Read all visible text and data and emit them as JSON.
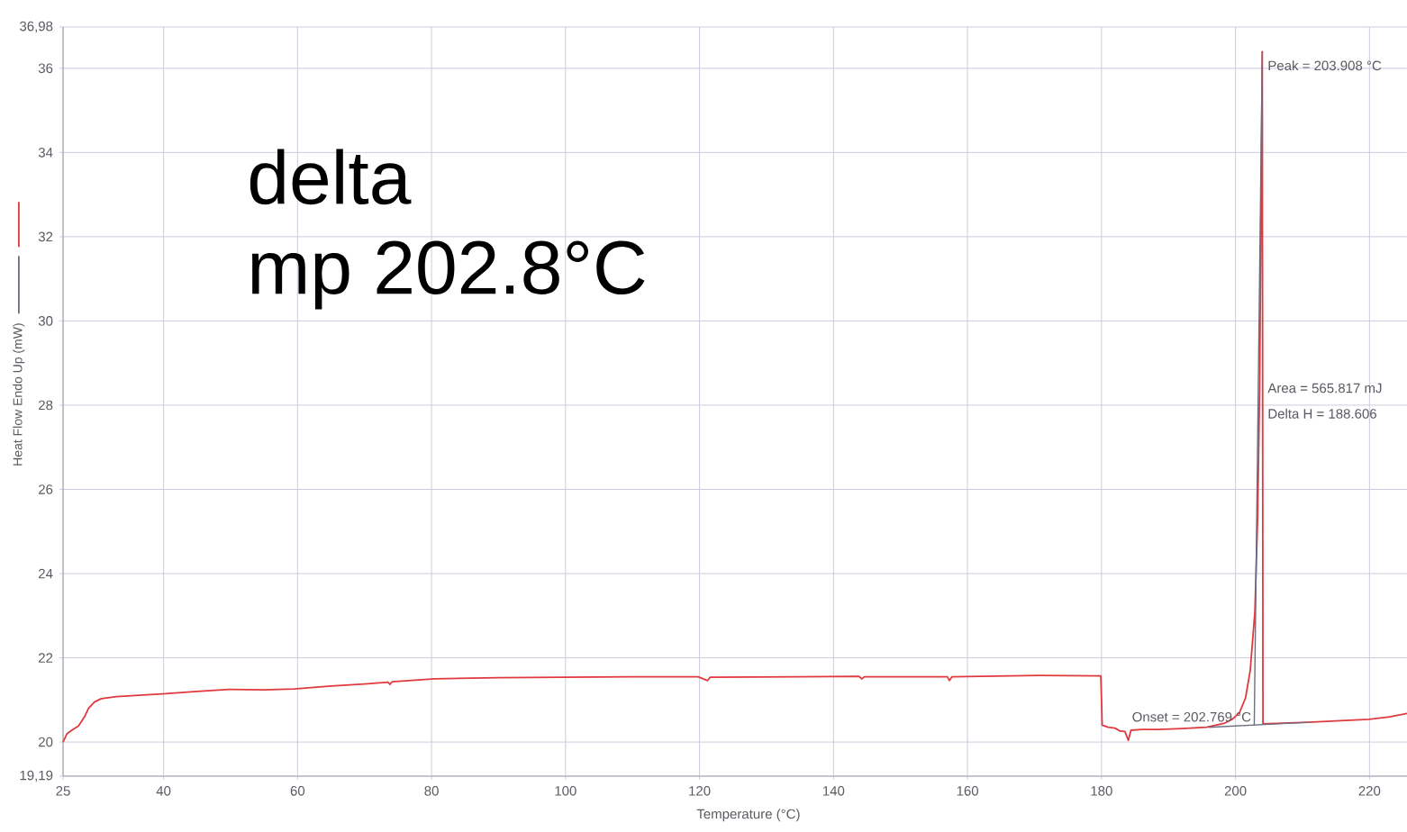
{
  "chart_data": {
    "type": "line",
    "xlabel": "Temperature (°C)",
    "ylabel": "Heat Flow Endo Up (mW)",
    "xlim": [
      25,
      225.6
    ],
    "ylim": [
      19.19,
      36.98
    ],
    "xticks": [
      25,
      40,
      60,
      80,
      100,
      120,
      140,
      160,
      180,
      200,
      220
    ],
    "yticks": [
      {
        "value": 19.19,
        "label": "19,19"
      },
      20,
      22,
      24,
      26,
      28,
      30,
      32,
      34,
      36,
      {
        "value": 36.98,
        "label": "36,98"
      }
    ],
    "grid": true,
    "series": [
      {
        "color": "#e0393e",
        "x": [
          25.0,
          25.6,
          26.4,
          27.3,
          28.2,
          28.8,
          29.7,
          30.7,
          33.0,
          40.3,
          45.0,
          49.8,
          55.0,
          59.5,
          65.0,
          70.0,
          73.5,
          73.8,
          74.1,
          80.5,
          90.0,
          99.7,
          110.0,
          119.8,
          121.2,
          121.6,
          135.0,
          143.8,
          144.2,
          144.6,
          157.0,
          157.3,
          157.7,
          170.6,
          179.9,
          180.1,
          181.0,
          182.0,
          182.8,
          183.5,
          184.0,
          184.4,
          186.0,
          188.5,
          192.0,
          195.7,
          198.4,
          199.6,
          200.6,
          201.5,
          202.2,
          202.9,
          203.3,
          203.6,
          204.0,
          204.1,
          207.0,
          210.9,
          215.0,
          219.9,
          223.0,
          225.6
        ],
        "values": [
          20.0,
          20.2,
          20.29,
          20.38,
          20.6,
          20.8,
          20.95,
          21.03,
          21.08,
          21.15,
          21.2,
          21.25,
          21.24,
          21.26,
          21.33,
          21.38,
          21.42,
          21.37,
          21.43,
          21.5,
          21.53,
          21.54,
          21.55,
          21.55,
          21.46,
          21.54,
          21.55,
          21.56,
          21.5,
          21.55,
          21.55,
          21.46,
          21.55,
          21.58,
          21.57,
          20.4,
          20.35,
          20.33,
          20.26,
          20.25,
          20.04,
          20.28,
          20.3,
          20.3,
          20.32,
          20.35,
          20.45,
          20.55,
          20.7,
          21.05,
          21.7,
          23.1,
          25.3,
          28.4,
          36.4,
          20.43,
          20.45,
          20.47,
          20.5,
          20.54,
          20.6,
          20.68
        ]
      },
      {
        "color": "#6e6e82",
        "x": [
          196.0,
          210.9
        ],
        "values": [
          20.35,
          20.47
        ]
      },
      {
        "color": "#6e6e82",
        "x": [
          202.8,
          204.0
        ],
        "values": [
          20.4,
          36.4
        ]
      }
    ],
    "annotations": [
      "delta",
      "mp 202.8°C",
      "Peak = 203.908 °C",
      "Area = 565.817 mJ",
      "Delta H = 188.606",
      "Onset = 202.769 °C"
    ]
  }
}
